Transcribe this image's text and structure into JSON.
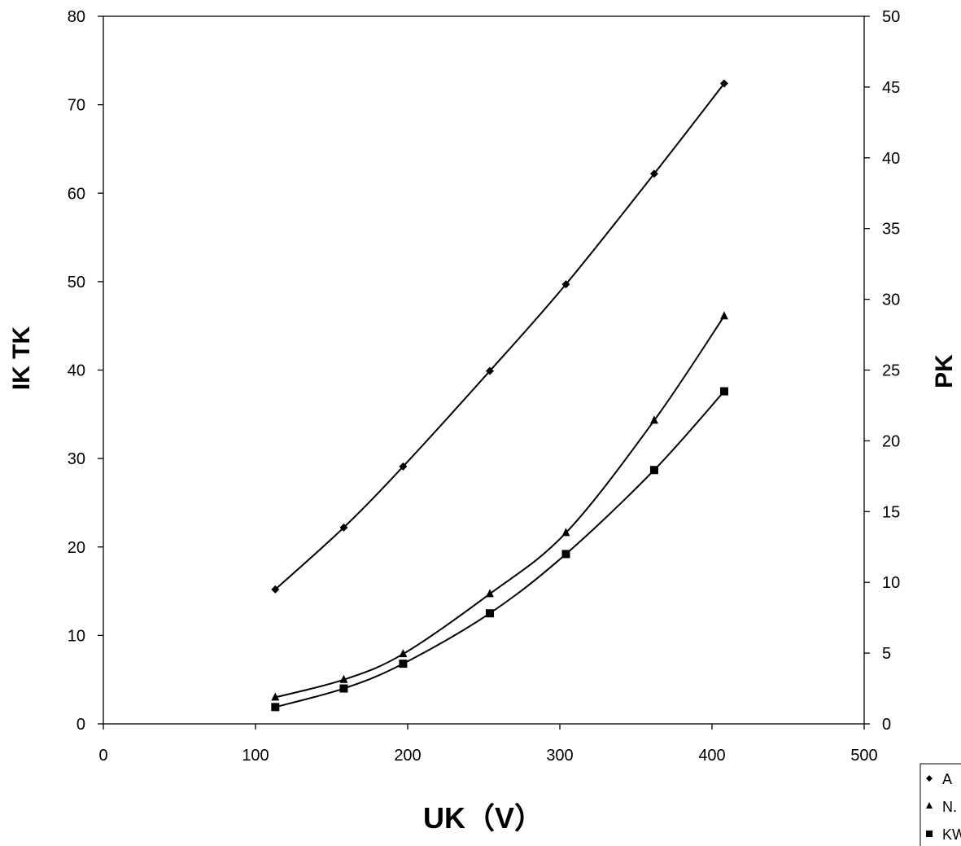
{
  "chart_data": {
    "type": "line",
    "xlabel": "UK（V）",
    "ylabel": "IK TK",
    "y2label": "PK",
    "xlim": [
      0,
      500
    ],
    "ylim": [
      0,
      80
    ],
    "y2lim": [
      0,
      50
    ],
    "xticks": [
      "0",
      "100",
      "200",
      "300",
      "400",
      "500"
    ],
    "yticks": [
      "0",
      "10",
      "20",
      "30",
      "40",
      "50",
      "60",
      "70",
      "80"
    ],
    "y2ticks": [
      "0",
      "5",
      "10",
      "15",
      "20",
      "25",
      "30",
      "35",
      "40",
      "45",
      "50"
    ],
    "grid": false,
    "legend_position": "bottom-right",
    "series": [
      {
        "name": "A",
        "marker": "diamond",
        "axis": "left",
        "color": "#000000",
        "x": [
          113,
          158,
          197,
          254,
          304,
          362,
          408
        ],
        "y": [
          15.2,
          22.2,
          29.1,
          39.9,
          49.7,
          62.2,
          72.4
        ]
      },
      {
        "name": "N.",
        "marker": "triangle",
        "axis": "left",
        "color": "#000000",
        "x": [
          113,
          158,
          197,
          254,
          304,
          362,
          408
        ],
        "y": [
          3.0,
          5.0,
          7.9,
          14.7,
          21.6,
          34.3,
          46.1
        ]
      },
      {
        "name": "KW",
        "marker": "square",
        "axis": "left",
        "color": "#000000",
        "x": [
          113,
          158,
          197,
          254,
          304,
          362,
          408
        ],
        "y": [
          1.9,
          4.0,
          6.8,
          12.5,
          19.2,
          28.7,
          37.6
        ]
      }
    ]
  }
}
